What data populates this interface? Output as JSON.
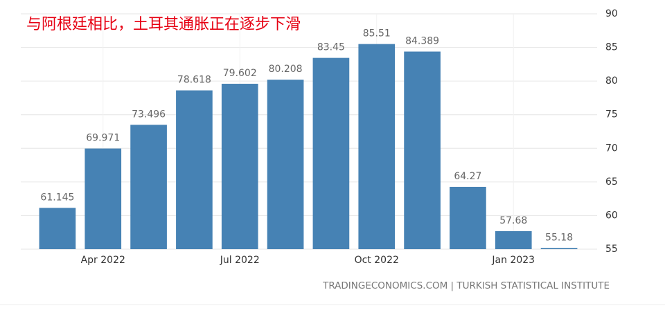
{
  "chart_data": {
    "type": "bar",
    "title": "与阿根廷相比，土耳其通胀正在逐步下滑",
    "source": "TRADINGECONOMICS.COM | TURKISH STATISTICAL INSTITUTE",
    "categories": [
      null,
      "Apr 2022",
      null,
      null,
      "Jul 2022",
      null,
      null,
      "Oct 2022",
      null,
      null,
      "Jan 2023",
      null
    ],
    "values": [
      61.145,
      69.971,
      73.496,
      78.618,
      79.602,
      80.208,
      83.45,
      85.51,
      84.389,
      64.27,
      57.68,
      55.18
    ],
    "color": "#4682b4",
    "ylim": [
      55,
      90
    ],
    "yticks": [
      55,
      60,
      65,
      70,
      75,
      80,
      85,
      90
    ],
    "grid": true
  }
}
